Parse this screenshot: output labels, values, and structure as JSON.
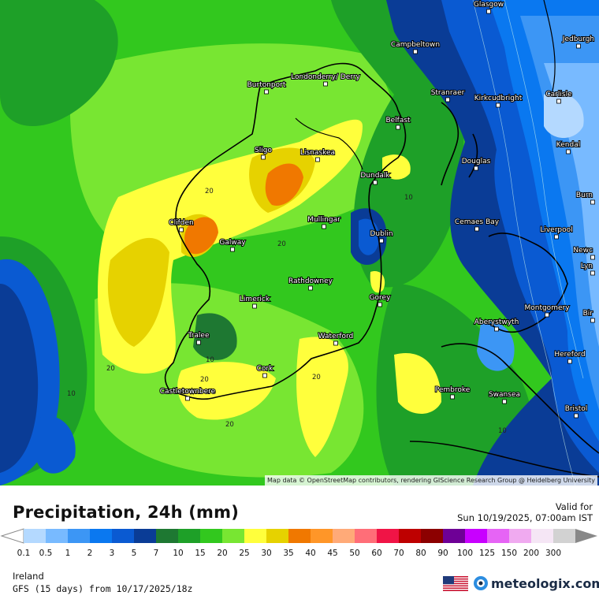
{
  "map": {
    "attribution": "Map data © OpenStreetMap contributors, rendering GIScience Research Group @ Heidelberg University",
    "cities": [
      {
        "name": "Glasgow"
      },
      {
        "name": "Jedburgh"
      },
      {
        "name": "Campbeltown"
      },
      {
        "name": "Londonderry/ Derry"
      },
      {
        "name": "Burtonport"
      },
      {
        "name": "Stranraer"
      },
      {
        "name": "Kirkcudbright"
      },
      {
        "name": "Carlisle"
      },
      {
        "name": "Belfast"
      },
      {
        "name": "Kendal"
      },
      {
        "name": "Sligo"
      },
      {
        "name": "Lisnaskea"
      },
      {
        "name": "Douglas"
      },
      {
        "name": "Dundalk"
      },
      {
        "name": "Burn"
      },
      {
        "name": "Clifden"
      },
      {
        "name": "Mullingar"
      },
      {
        "name": "Cemaes Bay"
      },
      {
        "name": "Liverpool"
      },
      {
        "name": "Dublin"
      },
      {
        "name": "Galway"
      },
      {
        "name": "Newc"
      },
      {
        "name": "Lyn"
      },
      {
        "name": "Rathdowney"
      },
      {
        "name": "Limerick"
      },
      {
        "name": "Gorey"
      },
      {
        "name": "Montgomery"
      },
      {
        "name": "Bir"
      },
      {
        "name": "Aberystwyth"
      },
      {
        "name": "Tralee"
      },
      {
        "name": "Waterford"
      },
      {
        "name": "Hereford"
      },
      {
        "name": "Cork"
      },
      {
        "name": "Pembroke"
      },
      {
        "name": "Castletownbere"
      },
      {
        "name": "Swansea"
      },
      {
        "name": "Bristol"
      }
    ],
    "contour_labels": [
      "20",
      "20",
      "10",
      "20",
      "10",
      "20",
      "10",
      "20",
      "20",
      "10"
    ]
  },
  "legend": {
    "title": "Precipitation, 24h (mm)",
    "valid_label": "Valid for",
    "valid_value": "Sun 10/19/2025, 07:00am IST",
    "ticks": [
      "0.1",
      "0.5",
      "1",
      "2",
      "3",
      "5",
      "7",
      "10",
      "15",
      "20",
      "25",
      "30",
      "35",
      "40",
      "45",
      "50",
      "60",
      "70",
      "80",
      "90",
      "100",
      "125",
      "150",
      "200",
      "300"
    ],
    "colors": [
      "#b4d9ff",
      "#78baff",
      "#3c96f5",
      "#0a78f0",
      "#0a5ad2",
      "#0a3c96",
      "#1e7832",
      "#1ea028",
      "#32c81e",
      "#78e632",
      "#ffff3c",
      "#e6d200",
      "#f07800",
      "#ff9628",
      "#ffaa78",
      "#ff6e78",
      "#f01446",
      "#be0000",
      "#8c0000",
      "#6e0096",
      "#c800ff",
      "#e664f5",
      "#f0aaf0",
      "#f5e6f5",
      "#d2d2d2"
    ]
  },
  "footer": {
    "region": "Ireland",
    "model": "GFS (15 days) from 10/17/2025/18z",
    "brand": "meteologix.com"
  }
}
